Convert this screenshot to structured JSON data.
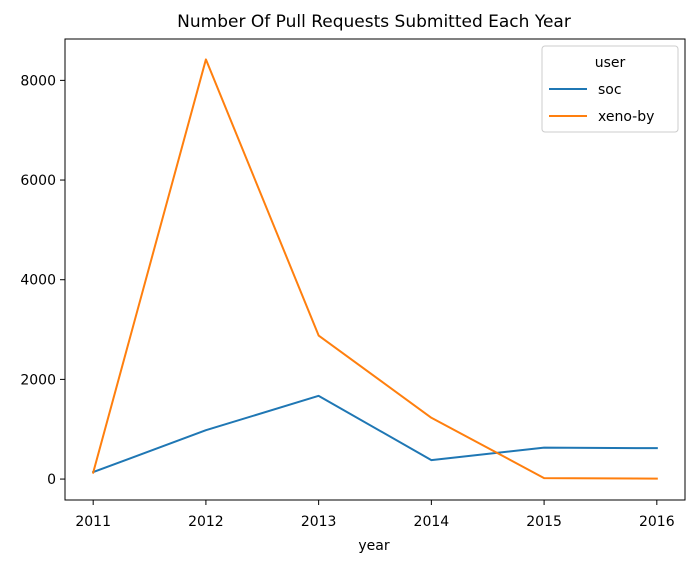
{
  "chart_data": {
    "type": "line",
    "title": "Number Of Pull Requests Submitted Each Year",
    "xlabel": "year",
    "ylabel": "",
    "x": [
      2011,
      2012,
      2013,
      2014,
      2015,
      2016
    ],
    "xticks": [
      "2011",
      "2012",
      "2013",
      "2014",
      "2015",
      "2016"
    ],
    "yticks": [
      "0",
      "2000",
      "4000",
      "6000",
      "8000"
    ],
    "ytick_values": [
      0,
      2000,
      4000,
      6000,
      8000
    ],
    "xlim": [
      2010.75,
      2016.25
    ],
    "ylim": [
      -420,
      8830
    ],
    "grid": false,
    "legend": {
      "title": "user",
      "placement": "top-right"
    },
    "series": [
      {
        "name": "soc",
        "color": "#1f77b4",
        "values": [
          140,
          980,
          1670,
          380,
          630,
          620
        ]
      },
      {
        "name": "xeno-by",
        "color": "#ff7f0e",
        "values": [
          130,
          8420,
          2880,
          1230,
          20,
          10
        ]
      }
    ]
  }
}
